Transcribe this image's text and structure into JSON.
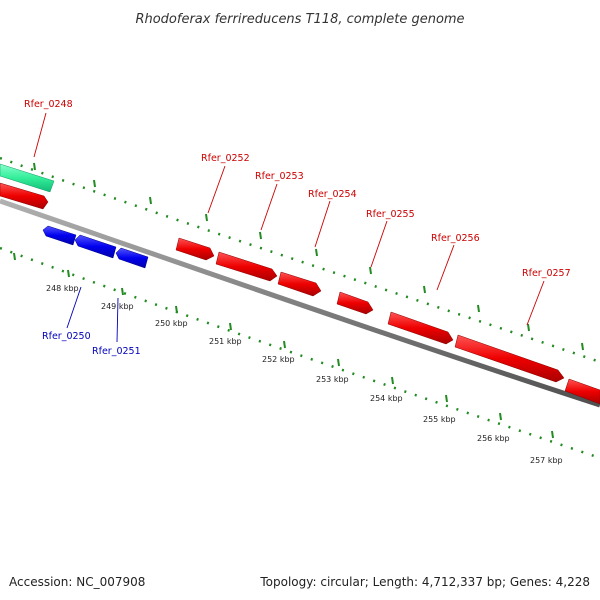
{
  "title": "Rhodoferax ferrireducens T118, complete genome",
  "footer": {
    "accession": "Accession: NC_007908",
    "summary": "Topology: circular; Length: 4,712,337 bp; Genes: 4,228"
  },
  "colors": {
    "forward_gene": "#dd0000",
    "reverse_gene": "#0000dd",
    "rna_feature": "#22ee99",
    "backbone": "#808080",
    "ticks": "#228b22",
    "fwd_label": "#cc0000",
    "rev_label": "#0000bb"
  },
  "genes_forward": [
    {
      "id": "Rfer_0248",
      "label": "Rfer_0248"
    },
    {
      "id": "Rfer_0252",
      "label": "Rfer_0252"
    },
    {
      "id": "Rfer_0253",
      "label": "Rfer_0253"
    },
    {
      "id": "Rfer_0254",
      "label": "Rfer_0254"
    },
    {
      "id": "Rfer_0255",
      "label": "Rfer_0255"
    },
    {
      "id": "Rfer_0256",
      "label": "Rfer_0256"
    },
    {
      "id": "Rfer_0257",
      "label": "Rfer_0257"
    }
  ],
  "genes_reverse": [
    {
      "id": "Rfer_0250",
      "label": "Rfer_0250"
    },
    {
      "id": "Rfer_0251",
      "label": "Rfer_0251"
    }
  ],
  "scale_labels": [
    "248 kbp",
    "249 kbp",
    "250 kbp",
    "251 kbp",
    "252 kbp",
    "253 kbp",
    "254 kbp",
    "255 kbp",
    "256 kbp",
    "257 kbp"
  ]
}
